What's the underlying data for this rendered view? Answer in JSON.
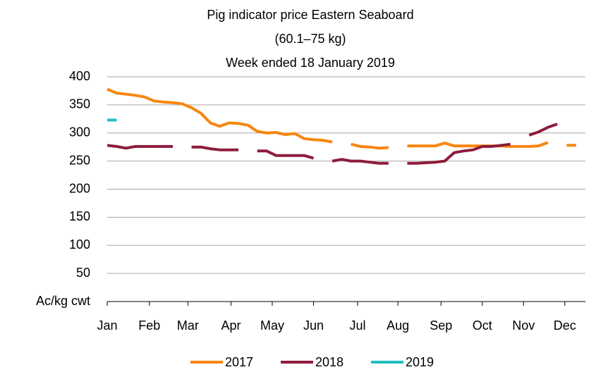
{
  "chart_data": {
    "type": "line",
    "title": [
      "Pig indicator price Eastern Seaboard",
      "(60.1–75 kg)",
      "Week ended 18 January 2019"
    ],
    "x": [
      1,
      2,
      3,
      4,
      5,
      6,
      7,
      8,
      9,
      10,
      11,
      12,
      13,
      14,
      15,
      16,
      17,
      18,
      19,
      20,
      21,
      22,
      23,
      24,
      25,
      26,
      27,
      28,
      29,
      30,
      31,
      32,
      33,
      34,
      35,
      36,
      37,
      38,
      39,
      40,
      41,
      42,
      43,
      44,
      45,
      46,
      47,
      48,
      49,
      50,
      51,
      52
    ],
    "xlim": [
      1,
      52
    ],
    "xticks": [
      {
        "value": 1,
        "label": "Jan"
      },
      {
        "value": 5.5,
        "label": "Feb"
      },
      {
        "value": 9.6,
        "label": "Mar"
      },
      {
        "value": 14.2,
        "label": "Apr"
      },
      {
        "value": 18.6,
        "label": "May"
      },
      {
        "value": 23,
        "label": "Jun"
      },
      {
        "value": 27.7,
        "label": "Jul"
      },
      {
        "value": 32,
        "label": "Aug"
      },
      {
        "value": 36.6,
        "label": "Sep"
      },
      {
        "value": 41,
        "label": "Oct"
      },
      {
        "value": 45.4,
        "label": "Nov"
      },
      {
        "value": 49.8,
        "label": "Dec"
      }
    ],
    "ylim": [
      0,
      400
    ],
    "yticks": [
      {
        "value": 0,
        "label": "Ac/kg cwt"
      },
      50,
      100,
      150,
      200,
      250,
      300,
      350,
      400
    ],
    "grid": true,
    "legend": "bottom",
    "series": [
      {
        "name": "2017",
        "color": "#f7860f",
        "values": [
          378,
          371,
          369,
          367,
          364,
          357,
          355,
          354,
          352,
          345,
          335,
          318,
          312,
          318,
          317,
          314,
          303,
          300,
          301,
          297,
          299,
          290,
          288,
          287,
          284,
          null,
          280,
          276,
          275,
          273,
          274,
          null,
          277,
          277,
          277,
          277,
          282,
          277,
          277,
          277,
          277,
          277,
          277,
          276,
          276,
          276,
          277,
          283,
          null,
          278,
          278,
          null
        ]
      },
      {
        "name": "2018",
        "color": "#8e1c3c",
        "values": [
          278,
          276,
          273,
          276,
          276,
          276,
          276,
          276,
          null,
          275,
          275,
          272,
          270,
          270,
          270,
          null,
          268,
          268,
          260,
          260,
          260,
          260,
          255,
          null,
          250,
          253,
          250,
          250,
          248,
          246,
          246,
          null,
          246,
          246,
          247,
          248,
          250,
          265,
          268,
          270,
          276,
          276,
          278,
          280,
          null,
          296,
          302,
          310,
          316,
          null,
          null,
          null
        ]
      },
      {
        "name": "2019",
        "color": "#1fbfbf",
        "values": [
          323,
          323,
          null,
          null,
          null,
          null,
          null,
          null,
          null,
          null,
          null,
          null,
          null,
          null,
          null,
          null,
          null,
          null,
          null,
          null,
          null,
          null,
          null,
          null,
          null,
          null,
          null,
          null,
          null,
          null,
          null,
          null,
          null,
          null,
          null,
          null,
          null,
          null,
          null,
          null,
          null,
          null,
          null,
          null,
          null,
          null,
          null,
          null,
          null,
          null,
          null,
          null
        ]
      }
    ]
  }
}
